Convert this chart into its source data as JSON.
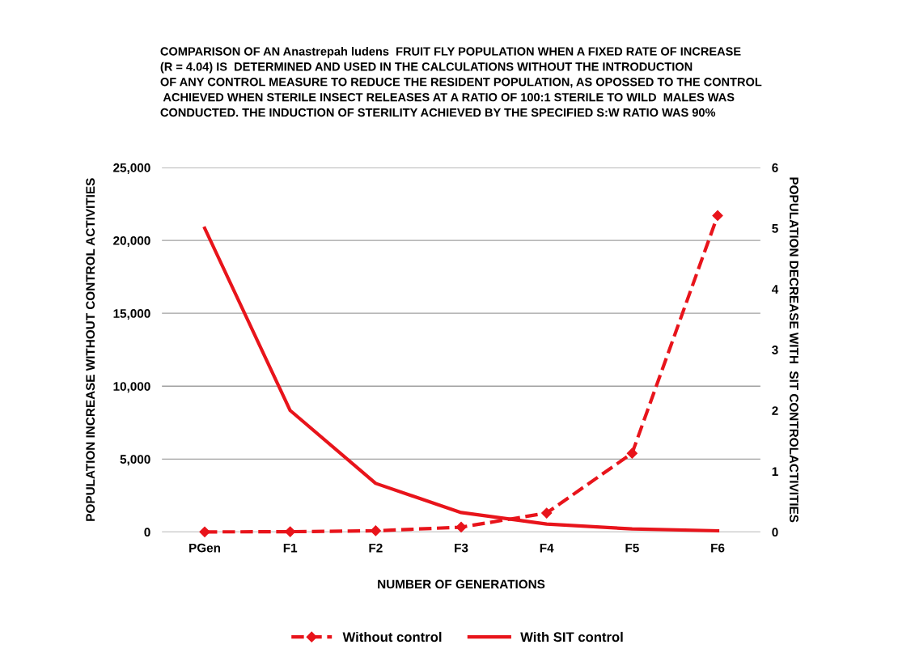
{
  "chart_data": {
    "type": "line",
    "title": "COMPARISON OF AN Anastrepah ludens  FRUIT FLY POPULATION WHEN A FIXED RATE OF INCREASE\n(R = 4.04) IS  DETERMINED AND USED IN THE CALCULATIONS WITHOUT THE INTRODUCTION\nOF ANY CONTROL MEASURE TO REDUCE THE RESIDENT POPULATION, AS OPOSSED TO THE CONTROL\n ACHIEVED WHEN STERILE INSECT RELEASES AT A RATIO OF 100:1 STERILE TO WILD  MALES WAS\nCONDUCTED. THE INDUCTION OF STERILITY ACHIEVED BY THE SPECIFIED S:W RATIO WAS 90%",
    "xlabel": "NUMBER OF GENERATIONS",
    "ylabel": "POPULATION INCREASE WITHOUT CONTROL ACTIVITIES",
    "y2label": "POPULATION DECREASE WITH  SIT CONTROLACTIVITIES",
    "categories": [
      "PGen",
      "F1",
      "F2",
      "F3",
      "F4",
      "F5",
      "F6"
    ],
    "series": [
      {
        "name": "Without control",
        "color": "#e8141b",
        "line_style": "dashed",
        "marker": "diamond",
        "values": [
          5,
          20,
          80,
          330,
          1300,
          5400,
          21700
        ]
      },
      {
        "name": "With SIT control",
        "color": "#e8141b",
        "line_style": "solid",
        "marker": "none",
        "axis": "y2",
        "values": [
          5,
          2.0,
          0.8,
          0.32,
          0.13,
          0.05,
          0.02
        ]
      }
    ],
    "ylim": [
      0,
      25000
    ],
    "yticks": [
      {
        "value": 0,
        "label": "0"
      },
      {
        "value": 5000,
        "label": "5,000"
      },
      {
        "value": 10000,
        "label": "10,000"
      },
      {
        "value": 15000,
        "label": "15,000"
      },
      {
        "value": 20000,
        "label": "20,000"
      },
      {
        "value": 25000,
        "label": "25,000"
      }
    ],
    "y2lim": [
      0,
      6
    ],
    "y2ticks": [
      0,
      1,
      2,
      3,
      4,
      5,
      6
    ],
    "grid": "y",
    "legend": "bottom"
  }
}
